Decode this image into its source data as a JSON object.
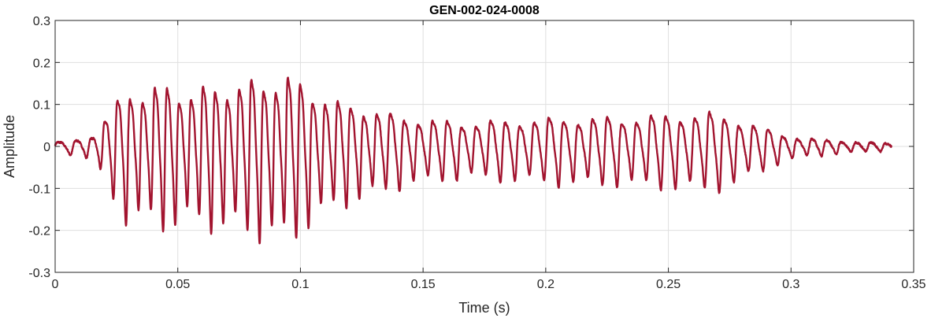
{
  "chart_data": {
    "type": "line",
    "title": "GEN-002-024-0008",
    "xlabel": "Time (s)",
    "ylabel": "Amplitude",
    "xlim": [
      0,
      0.35
    ],
    "ylim": [
      -0.3,
      0.3
    ],
    "grid": true,
    "xticks": [
      0,
      0.05,
      0.1,
      0.15,
      0.2,
      0.25,
      0.3,
      0.35
    ],
    "xtick_labels": [
      "0",
      "0.05",
      "0.1",
      "0.15",
      "0.2",
      "0.25",
      "0.3",
      "0.35"
    ],
    "yticks": [
      -0.3,
      -0.2,
      -0.1,
      0,
      0.1,
      0.2,
      0.3
    ],
    "ytick_labels": [
      "-0.3",
      "-0.2",
      "-0.1",
      "0",
      "0.1",
      "0.2",
      "0.3"
    ],
    "series": [
      {
        "color": "#A2142F",
        "duration": 0.341,
        "envelope": [
          [
            0.0,
            0.01
          ],
          [
            0.005,
            0.015
          ],
          [
            0.01,
            0.02
          ],
          [
            0.015,
            0.03
          ],
          [
            0.02,
            0.07
          ],
          [
            0.025,
            0.12
          ],
          [
            0.03,
            0.16
          ],
          [
            0.035,
            0.15
          ],
          [
            0.045,
            0.165
          ],
          [
            0.055,
            0.15
          ],
          [
            0.065,
            0.165
          ],
          [
            0.075,
            0.17
          ],
          [
            0.085,
            0.185
          ],
          [
            0.095,
            0.19
          ],
          [
            0.105,
            0.155
          ],
          [
            0.115,
            0.12
          ],
          [
            0.125,
            0.11
          ],
          [
            0.135,
            0.09
          ],
          [
            0.145,
            0.08
          ],
          [
            0.155,
            0.07
          ],
          [
            0.17,
            0.065
          ],
          [
            0.19,
            0.072
          ],
          [
            0.21,
            0.078
          ],
          [
            0.23,
            0.078
          ],
          [
            0.25,
            0.085
          ],
          [
            0.265,
            0.092
          ],
          [
            0.275,
            0.082
          ],
          [
            0.285,
            0.06
          ],
          [
            0.295,
            0.035
          ],
          [
            0.305,
            0.022
          ],
          [
            0.32,
            0.015
          ],
          [
            0.335,
            0.01
          ],
          [
            0.341,
            0.008
          ]
        ],
        "frequency": [
          [
            0.0,
            120
          ],
          [
            0.02,
            190
          ],
          [
            0.05,
            205
          ],
          [
            0.1,
            200
          ],
          [
            0.13,
            185
          ],
          [
            0.15,
            170
          ],
          [
            0.2,
            168
          ],
          [
            0.3,
            168
          ],
          [
            0.341,
            165
          ]
        ]
      }
    ]
  }
}
